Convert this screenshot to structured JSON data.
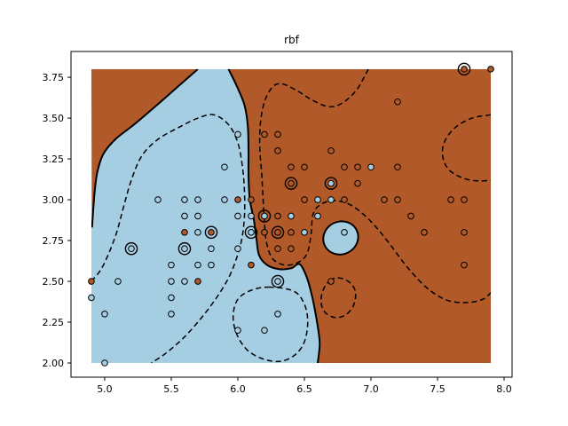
{
  "figure": {
    "title": "rbf"
  },
  "axes": {
    "xlim": [
      4.747,
      8.06
    ],
    "ylim": [
      1.913,
      3.908
    ],
    "x_ticks": {
      "labels": [
        "5.0",
        "5.5",
        "6.0",
        "6.5",
        "7.0",
        "7.5",
        "8.0"
      ],
      "values": [
        5.0,
        5.5,
        6.0,
        6.5,
        7.0,
        7.5,
        8.0
      ]
    },
    "y_ticks": {
      "labels": [
        "2.00",
        "2.25",
        "2.50",
        "2.75",
        "3.00",
        "3.25",
        "3.50",
        "3.75"
      ],
      "values": [
        2.0,
        2.25,
        2.5,
        2.75,
        3.0,
        3.25,
        3.5,
        3.75
      ]
    }
  },
  "chart_data": {
    "type": "scatter",
    "subtype": "svm-decision-regions-contour",
    "title": "rbf",
    "xlabel": "",
    "ylabel": "",
    "xlim": [
      4.747,
      8.06
    ],
    "ylim": [
      1.913,
      3.908
    ],
    "grid_extent": {
      "x": [
        4.9,
        7.9
      ],
      "y": [
        2.0,
        3.8
      ]
    },
    "legend": "none",
    "grid": false,
    "colors": {
      "class0_fill": "#a6cee3",
      "class1_fill": "#b15928",
      "contour_line": "#000000",
      "marker_edge": "#000000"
    },
    "series": [
      {
        "name": "class-0",
        "color": "#a6cee3"
      },
      {
        "name": "class-1",
        "color": "#b15928"
      }
    ],
    "points_format": "[x, y, class_index, support_vector_ring]",
    "points": [
      [
        4.9,
        2.4,
        0,
        0
      ],
      [
        5.0,
        2.0,
        0,
        0
      ],
      [
        5.0,
        2.3,
        0,
        0
      ],
      [
        5.1,
        2.5,
        0,
        0
      ],
      [
        5.4,
        3.0,
        0,
        0
      ],
      [
        5.5,
        2.3,
        0,
        0
      ],
      [
        5.5,
        2.4,
        0,
        0
      ],
      [
        5.5,
        2.5,
        0,
        0
      ],
      [
        5.5,
        2.6,
        0,
        0
      ],
      [
        5.6,
        2.5,
        0,
        0
      ],
      [
        5.6,
        2.9,
        0,
        0
      ],
      [
        5.6,
        3.0,
        0,
        0
      ],
      [
        5.7,
        2.6,
        0,
        0
      ],
      [
        5.7,
        2.8,
        0,
        0
      ],
      [
        5.7,
        2.9,
        0,
        0
      ],
      [
        5.7,
        3.0,
        0,
        0
      ],
      [
        5.8,
        2.6,
        0,
        0
      ],
      [
        5.8,
        2.7,
        0,
        0
      ],
      [
        5.9,
        3.0,
        0,
        0
      ],
      [
        5.9,
        3.2,
        0,
        0
      ],
      [
        6.0,
        2.2,
        0,
        0
      ],
      [
        6.0,
        2.7,
        0,
        0
      ],
      [
        6.0,
        2.9,
        0,
        0
      ],
      [
        6.0,
        3.4,
        0,
        0
      ],
      [
        6.1,
        2.9,
        0,
        0
      ],
      [
        6.2,
        2.2,
        0,
        0
      ],
      [
        6.3,
        2.3,
        0,
        0
      ],
      [
        6.4,
        2.9,
        0,
        0
      ],
      [
        6.5,
        2.8,
        0,
        0
      ],
      [
        6.6,
        2.9,
        0,
        0
      ],
      [
        6.6,
        3.0,
        0,
        0
      ],
      [
        6.7,
        3.0,
        0,
        0
      ],
      [
        6.8,
        2.8,
        0,
        0
      ],
      [
        7.0,
        3.2,
        0,
        0
      ],
      [
        5.2,
        2.7,
        0,
        1
      ],
      [
        5.6,
        2.7,
        0,
        1
      ],
      [
        6.1,
        2.8,
        0,
        1
      ],
      [
        6.2,
        2.9,
        0,
        1
      ],
      [
        6.3,
        2.5,
        0,
        1
      ],
      [
        6.7,
        3.1,
        0,
        1
      ],
      [
        4.9,
        2.5,
        1,
        0
      ],
      [
        5.6,
        2.8,
        1,
        0
      ],
      [
        5.7,
        2.5,
        1,
        0
      ],
      [
        6.0,
        3.0,
        1,
        0
      ],
      [
        6.1,
        2.6,
        1,
        0
      ],
      [
        6.1,
        3.0,
        1,
        0
      ],
      [
        6.2,
        2.8,
        1,
        0
      ],
      [
        6.2,
        3.4,
        1,
        0
      ],
      [
        6.3,
        2.7,
        1,
        0
      ],
      [
        6.3,
        2.9,
        1,
        0
      ],
      [
        6.3,
        3.3,
        1,
        0
      ],
      [
        6.3,
        3.4,
        1,
        0
      ],
      [
        6.4,
        2.7,
        1,
        0
      ],
      [
        6.4,
        2.8,
        1,
        0
      ],
      [
        6.4,
        3.2,
        1,
        0
      ],
      [
        6.5,
        3.0,
        1,
        0
      ],
      [
        6.5,
        3.2,
        1,
        0
      ],
      [
        6.7,
        2.5,
        1,
        0
      ],
      [
        6.7,
        3.3,
        1,
        0
      ],
      [
        6.8,
        3.0,
        1,
        0
      ],
      [
        6.8,
        3.2,
        1,
        0
      ],
      [
        6.9,
        3.1,
        1,
        0
      ],
      [
        6.9,
        3.2,
        1,
        0
      ],
      [
        7.1,
        3.0,
        1,
        0
      ],
      [
        7.2,
        3.0,
        1,
        0
      ],
      [
        7.2,
        3.2,
        1,
        0
      ],
      [
        7.2,
        3.6,
        1,
        0
      ],
      [
        7.3,
        2.9,
        1,
        0
      ],
      [
        7.4,
        2.8,
        1,
        0
      ],
      [
        7.6,
        3.0,
        1,
        0
      ],
      [
        7.7,
        2.6,
        1,
        0
      ],
      [
        7.7,
        2.8,
        1,
        0
      ],
      [
        7.7,
        3.0,
        1,
        0
      ],
      [
        7.9,
        3.8,
        1,
        0
      ],
      [
        5.8,
        2.8,
        1,
        1
      ],
      [
        6.3,
        2.8,
        1,
        1
      ],
      [
        6.4,
        3.1,
        1,
        1
      ],
      [
        7.7,
        3.8,
        1,
        1
      ]
    ],
    "boundaries": {
      "wedge_solid": [
        [
          5.7,
          3.8
        ],
        [
          5.56,
          3.7
        ],
        [
          5.4,
          3.585
        ],
        [
          5.22,
          3.46
        ],
        [
          5.08,
          3.37
        ],
        [
          4.99,
          3.28
        ],
        [
          4.945,
          3.17
        ],
        [
          4.925,
          3.05
        ],
        [
          4.915,
          2.95
        ],
        [
          4.905,
          2.83
        ]
      ],
      "main_solid": [
        [
          5.93,
          3.8
        ],
        [
          5.99,
          3.7
        ],
        [
          6.05,
          3.58
        ],
        [
          6.075,
          3.45
        ],
        [
          6.08,
          3.3
        ],
        [
          6.08,
          3.15
        ],
        [
          6.09,
          3.0
        ],
        [
          6.12,
          2.88
        ],
        [
          6.14,
          2.76
        ],
        [
          6.16,
          2.66
        ],
        [
          6.22,
          2.6
        ],
        [
          6.31,
          2.575
        ],
        [
          6.4,
          2.58
        ],
        [
          6.465,
          2.605
        ],
        [
          6.52,
          2.52
        ],
        [
          6.56,
          2.4
        ],
        [
          6.595,
          2.25
        ],
        [
          6.615,
          2.12
        ],
        [
          6.6,
          2.0
        ]
      ],
      "island": {
        "cx": 6.773,
        "cy": 2.766,
        "rx": 0.133,
        "ry": 0.1,
        "rotate": -25
      },
      "margin_blue_dashed": [
        [
          4.9,
          2.5
        ],
        [
          4.97,
          2.57
        ],
        [
          5.03,
          2.67
        ],
        [
          5.09,
          2.8
        ],
        [
          5.14,
          2.95
        ],
        [
          5.2,
          3.12
        ],
        [
          5.28,
          3.27
        ],
        [
          5.4,
          3.37
        ],
        [
          5.55,
          3.44
        ],
        [
          5.7,
          3.5
        ],
        [
          5.82,
          3.52
        ],
        [
          5.93,
          3.46
        ],
        [
          6.0,
          3.35
        ],
        [
          6.035,
          3.2
        ],
        [
          6.05,
          3.05
        ],
        [
          6.05,
          2.9
        ],
        [
          6.03,
          2.76
        ],
        [
          5.99,
          2.64
        ],
        [
          5.93,
          2.52
        ],
        [
          5.84,
          2.4
        ],
        [
          5.73,
          2.28
        ],
        [
          5.6,
          2.16
        ],
        [
          5.46,
          2.06
        ],
        [
          5.35,
          2.0
        ]
      ],
      "margin_brown_dashed": [
        [
          6.98,
          3.8
        ],
        [
          6.89,
          3.67
        ],
        [
          6.78,
          3.59
        ],
        [
          6.68,
          3.57
        ],
        [
          6.56,
          3.61
        ],
        [
          6.44,
          3.67
        ],
        [
          6.33,
          3.71
        ],
        [
          6.26,
          3.69
        ],
        [
          6.2,
          3.6
        ],
        [
          6.17,
          3.47
        ],
        [
          6.165,
          3.32
        ],
        [
          6.18,
          3.15
        ],
        [
          6.19,
          3.0
        ],
        [
          6.2,
          2.86
        ],
        [
          6.215,
          2.74
        ],
        [
          6.26,
          2.64
        ],
        [
          6.35,
          2.6
        ],
        [
          6.45,
          2.615
        ],
        [
          6.52,
          2.67
        ],
        [
          6.55,
          2.79
        ],
        [
          6.565,
          2.91
        ],
        [
          6.62,
          2.97
        ],
        [
          6.72,
          2.995
        ],
        [
          6.83,
          2.975
        ],
        [
          6.93,
          2.92
        ],
        [
          7.03,
          2.84
        ],
        [
          7.14,
          2.73
        ],
        [
          7.27,
          2.59
        ],
        [
          7.42,
          2.46
        ],
        [
          7.57,
          2.385
        ],
        [
          7.72,
          2.37
        ],
        [
          7.84,
          2.39
        ],
        [
          7.9,
          2.43
        ]
      ],
      "loop_bottom_dashed": [
        [
          6.24,
          2.465
        ],
        [
          6.1,
          2.445
        ],
        [
          6.0,
          2.39
        ],
        [
          5.965,
          2.29
        ],
        [
          5.99,
          2.18
        ],
        [
          6.07,
          2.08
        ],
        [
          6.19,
          2.025
        ],
        [
          6.32,
          2.01
        ],
        [
          6.43,
          2.05
        ],
        [
          6.5,
          2.13
        ],
        [
          6.525,
          2.25
        ],
        [
          6.5,
          2.36
        ],
        [
          6.42,
          2.44
        ]
      ],
      "teardrop_dashed": [
        [
          6.7,
          2.51
        ],
        [
          6.645,
          2.455
        ],
        [
          6.625,
          2.38
        ],
        [
          6.65,
          2.315
        ],
        [
          6.72,
          2.28
        ],
        [
          6.8,
          2.29
        ],
        [
          6.865,
          2.345
        ],
        [
          6.885,
          2.43
        ],
        [
          6.845,
          2.49
        ],
        [
          6.77,
          2.52
        ]
      ],
      "arc_right_dashed": [
        [
          7.9,
          3.52
        ],
        [
          7.76,
          3.5
        ],
        [
          7.63,
          3.44
        ],
        [
          7.55,
          3.35
        ],
        [
          7.54,
          3.26
        ],
        [
          7.59,
          3.18
        ],
        [
          7.7,
          3.13
        ],
        [
          7.81,
          3.115
        ],
        [
          7.9,
          3.12
        ]
      ]
    }
  }
}
